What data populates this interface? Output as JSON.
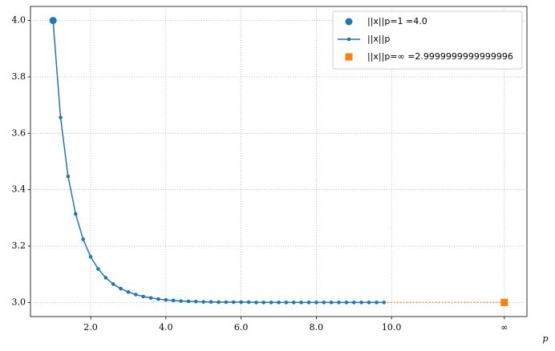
{
  "chart_data": {
    "type": "line",
    "x_label": "p",
    "xlim": [
      0.4,
      13.6
    ],
    "ylim": [
      2.95,
      4.05
    ],
    "xticks": [
      {
        "value": 2,
        "label": "2.0"
      },
      {
        "value": 4,
        "label": "4.0"
      },
      {
        "value": 6,
        "label": "6.0"
      },
      {
        "value": 8,
        "label": "8.0"
      },
      {
        "value": 10,
        "label": "10.0"
      },
      {
        "value": 13,
        "label": "∞"
      }
    ],
    "yticks": [
      {
        "value": 3,
        "label": "3.0"
      },
      3.2,
      3.4,
      3.6,
      3.8,
      {
        "value": 4,
        "label": "4.0"
      }
    ],
    "grid": true,
    "legend": "upper right",
    "series": [
      {
        "name": "||x||p=1 =4.0",
        "type": "scatter",
        "marker": "circle",
        "color": "#1f77b4",
        "x": [
          1
        ],
        "values": [
          4.0
        ]
      },
      {
        "name": "||x||p",
        "type": "line",
        "marker": "circle",
        "color": "#1f77b4",
        "x": [
          1.0,
          1.2,
          1.4,
          1.6,
          1.8,
          2.0,
          2.2,
          2.4,
          2.6,
          2.8,
          3.0,
          3.2,
          3.4,
          3.6,
          3.8,
          4.0,
          4.2,
          4.4,
          4.6,
          4.8,
          5.0,
          5.2,
          5.4,
          5.6,
          5.8,
          6.0,
          6.2,
          6.4,
          6.6,
          6.8,
          7.0,
          7.2,
          7.4,
          7.6,
          7.8,
          8.0,
          8.2,
          8.4,
          8.6,
          8.8,
          9.0,
          9.2,
          9.4,
          9.6,
          9.8
        ],
        "values": [
          4.0,
          3.656,
          3.447,
          3.314,
          3.224,
          3.162,
          3.119,
          3.088,
          3.065,
          3.049,
          3.037,
          3.028,
          3.021,
          3.016,
          3.012,
          3.009,
          3.007,
          3.005,
          3.004,
          3.003,
          3.002,
          3.002,
          3.001,
          3.001,
          3.001,
          3.001,
          3.001,
          3.0,
          3.0,
          3.0,
          3.0,
          3.0,
          3.0,
          3.0,
          3.0,
          3.0,
          3.0,
          3.0,
          3.0,
          3.0,
          3.0,
          3.0,
          3.0,
          3.0,
          3.0
        ]
      },
      {
        "name": "||x||p=∞ =2.9999999999999996",
        "type": "scatter",
        "marker": "square",
        "color": "#ff7f0e",
        "x": [
          13
        ],
        "values": [
          2.9999999999999996
        ]
      }
    ]
  }
}
